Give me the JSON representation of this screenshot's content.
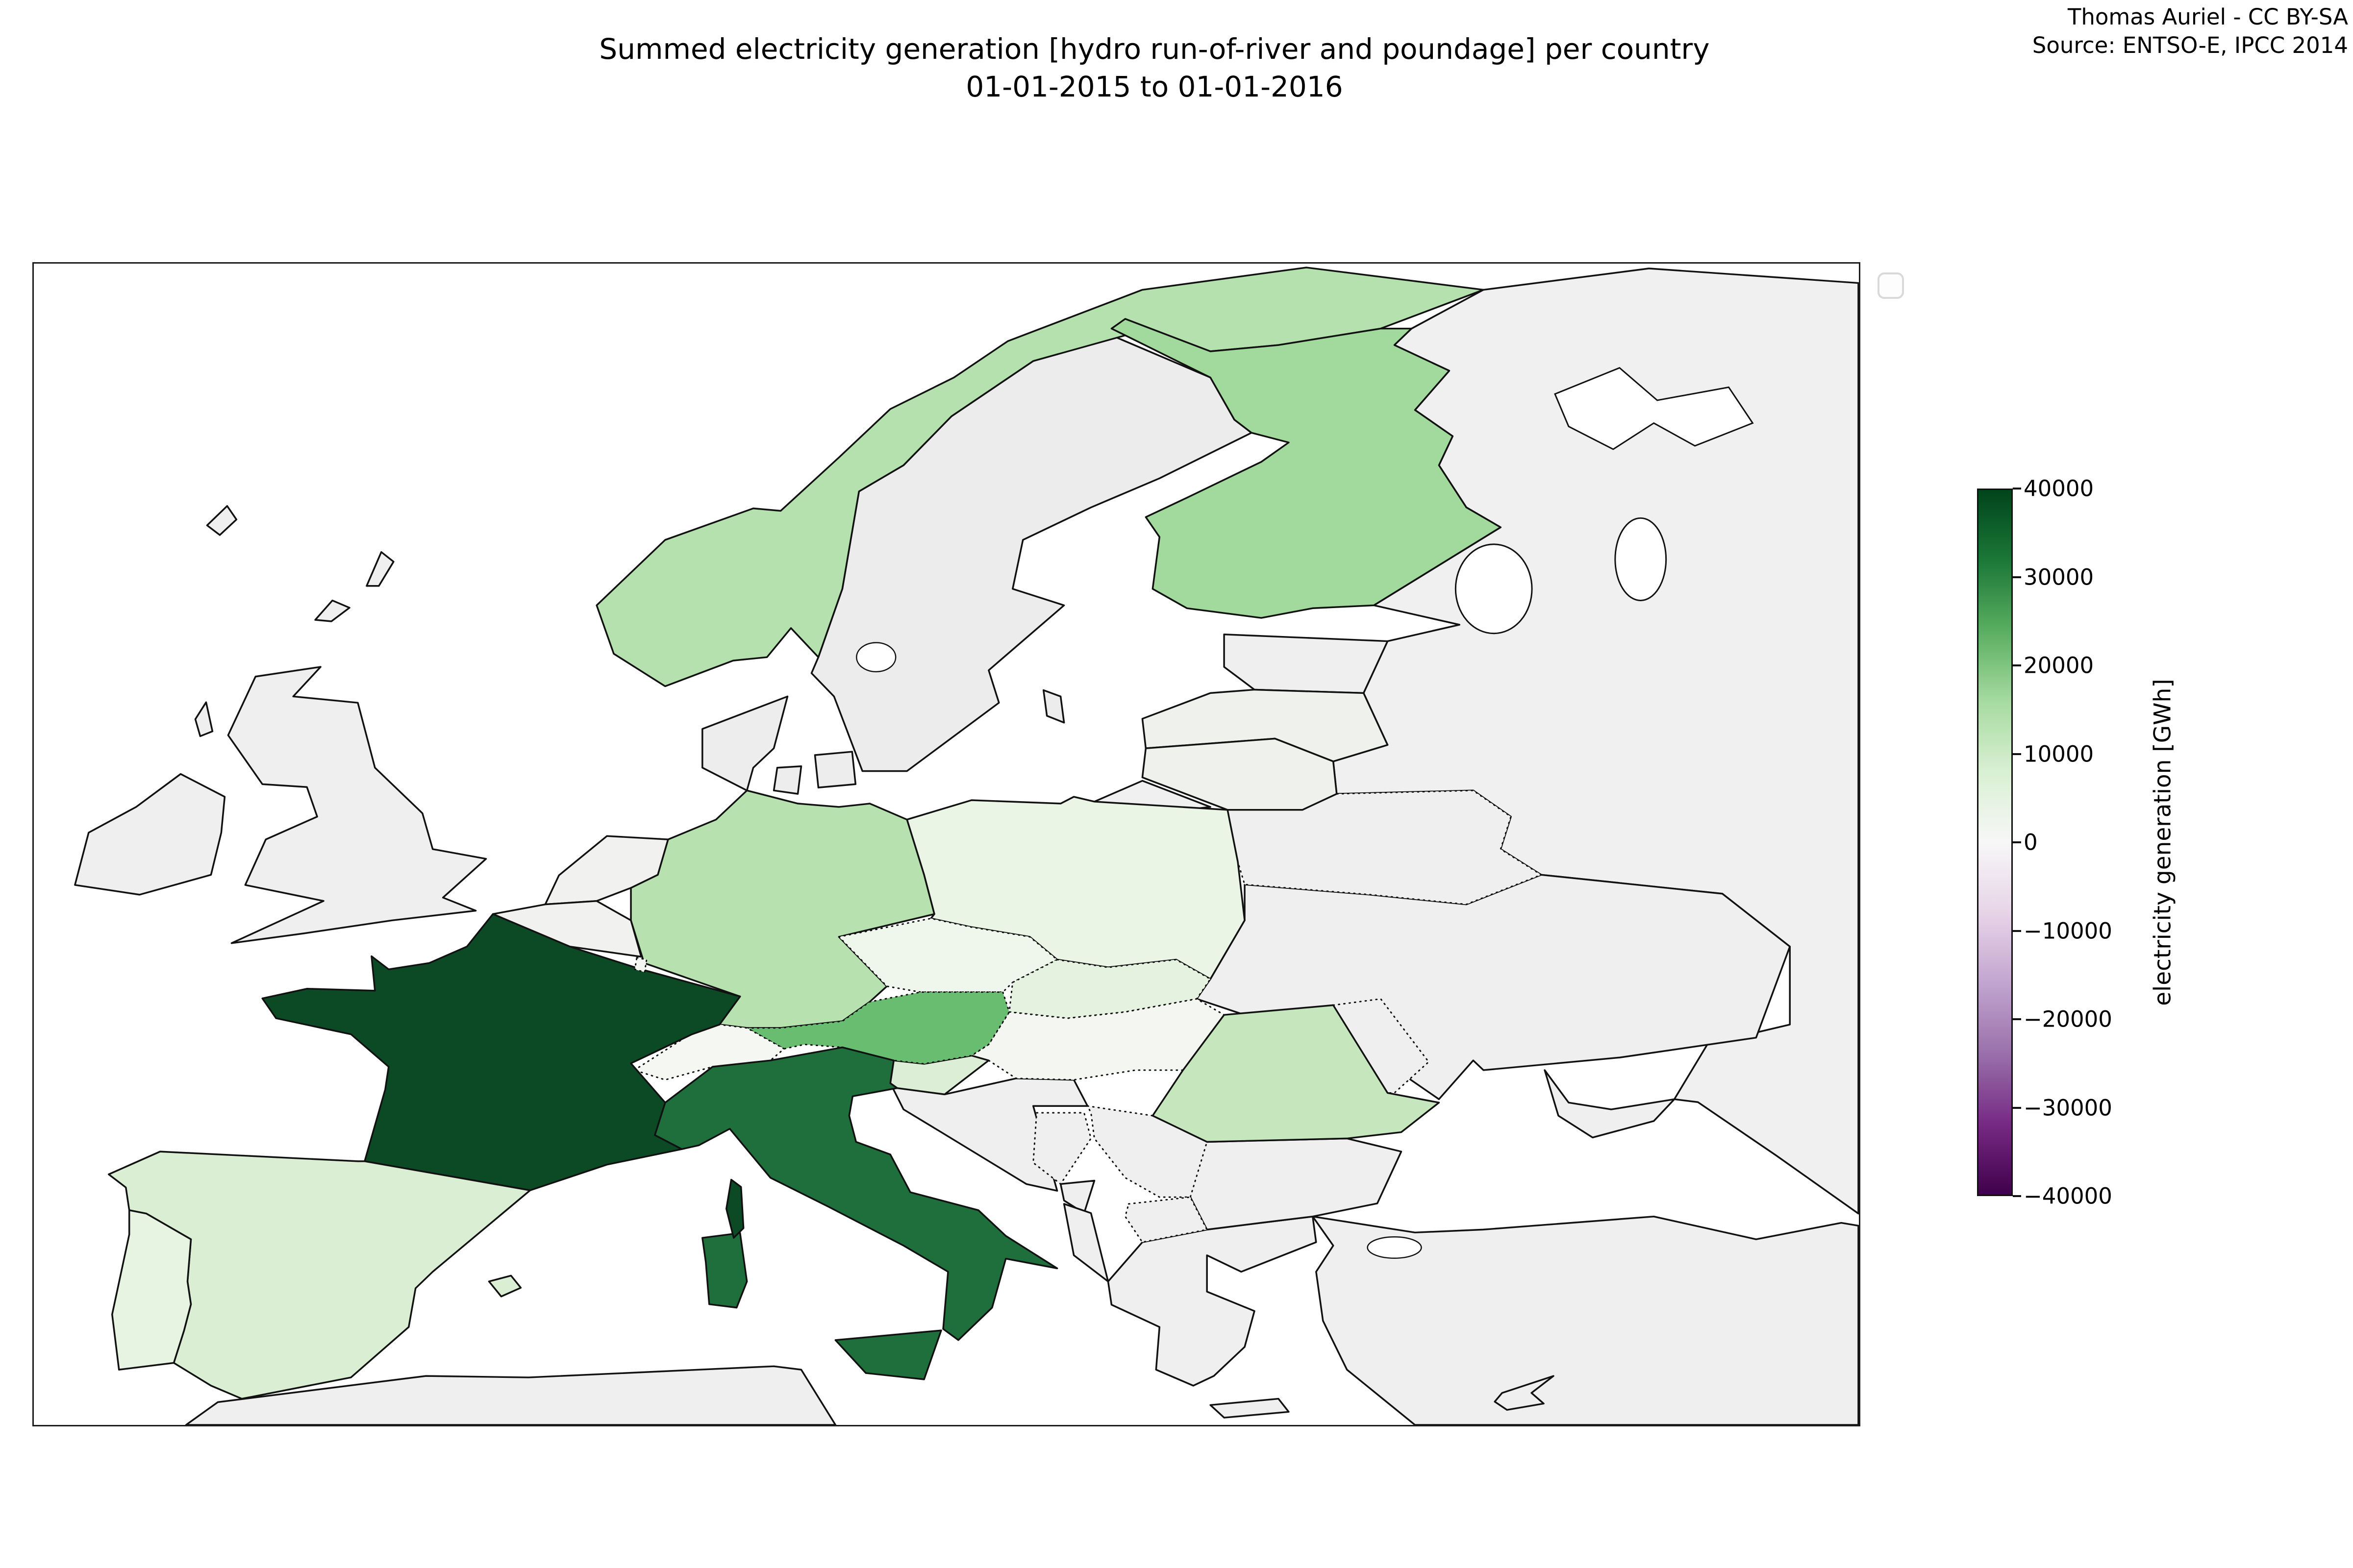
{
  "title": {
    "line1": "Summed electricity generation [hydro run-of-river and poundage] per country",
    "line2": "01-01-2015 to 01-01-2016"
  },
  "credit": {
    "line1": "Thomas Auriel - CC BY-SA",
    "line2": "Source: ENTSO-E, IPCC 2014"
  },
  "colorbar": {
    "label": "electricity generation [GWh]",
    "ticks": [
      "40000",
      "30000",
      "20000",
      "10000",
      "0",
      "−10000",
      "−20000",
      "−30000",
      "−40000"
    ],
    "vmin": -40000,
    "vmax": 40000,
    "colormap_name": "PRGn (green = positive, purple = negative)",
    "gradient_stops_top_to_bottom": [
      "#00441b",
      "#1b7837",
      "#5aae61",
      "#a6dba0",
      "#d9f0d3",
      "#f7f7f7",
      "#e7d4e8",
      "#c2a5cf",
      "#9970ab",
      "#762a83",
      "#40004b"
    ]
  },
  "map": {
    "sea_color": "#ffffff",
    "no_data_color": "#efefef",
    "border_color": "#111111",
    "countries": {
      "france": {
        "label": "France",
        "color": "#0c4a26",
        "border": "solid"
      },
      "italy": {
        "label": "Italy",
        "color": "#1e6f3c",
        "border": "solid"
      },
      "austria": {
        "label": "Austria",
        "color": "#68bd70",
        "border": "dotted"
      },
      "finland": {
        "label": "Finland",
        "color": "#a2d99c",
        "border": "solid"
      },
      "germany": {
        "label": "Germany",
        "color": "#b7e2b0",
        "border": "solid"
      },
      "norway": {
        "label": "Norway",
        "color": "#b5e1ae",
        "border": "solid"
      },
      "romania": {
        "label": "Romania",
        "color": "#c6e6bd",
        "border": "solid"
      },
      "spain": {
        "label": "Spain",
        "color": "#d9eed3",
        "border": "solid"
      },
      "slovenia": {
        "label": "Slovenia",
        "color": "#dcefd6",
        "border": "solid"
      },
      "slovakia": {
        "label": "Slovakia",
        "color": "#e4f2df",
        "border": "dotted"
      },
      "portugal": {
        "label": "Portugal",
        "color": "#e7f4e2",
        "border": "solid"
      },
      "poland": {
        "label": "Poland",
        "color": "#eaf5e6",
        "border": "solid"
      },
      "czechia": {
        "label": "Czech Republic",
        "color": "#eff7ec",
        "border": "dotted"
      },
      "switzerland": {
        "label": "Switzerland",
        "color": "#f5f7f3",
        "border": "dotted"
      },
      "hungary": {
        "label": "Hungary",
        "color": "#f4f6f2",
        "border": "dotted"
      },
      "luxembourg": {
        "label": "Luxembourg",
        "color": "#f4f6f2",
        "border": "dotted"
      },
      "belgium": {
        "label": "Belgium",
        "color": "#f1f1f0",
        "border": "solid",
        "no_data": true
      },
      "netherlands": {
        "label": "Netherlands",
        "color": "#f1f1f0",
        "border": "solid",
        "no_data": true
      },
      "uk": {
        "label": "United Kingdom",
        "color": "#efefef",
        "border": "solid",
        "no_data": true
      },
      "ireland": {
        "label": "Ireland",
        "color": "#efefef",
        "border": "solid",
        "no_data": true
      },
      "sweden": {
        "label": "Sweden",
        "color": "#ececec",
        "border": "solid",
        "no_data": true
      },
      "denmark": {
        "label": "Denmark",
        "color": "#ededed",
        "border": "solid",
        "no_data": true
      },
      "estonia": {
        "label": "Estonia",
        "color": "#efefef",
        "border": "solid",
        "no_data": true
      },
      "latvia": {
        "label": "Latvia",
        "color": "#eef1ec",
        "border": "solid",
        "no_data": true
      },
      "lithuania": {
        "label": "Lithuania",
        "color": "#eef1ec",
        "border": "solid",
        "no_data": true
      },
      "kaliningrad": {
        "label": "Russia (Kaliningrad)",
        "color": "#f0f0f0",
        "border": "solid",
        "no_data": true
      },
      "russia": {
        "label": "Russia",
        "color": "#f0f0f0",
        "border": "solid",
        "no_data": true
      },
      "belarus": {
        "label": "Belarus",
        "color": "#efefef",
        "border": "dotted",
        "no_data": true
      },
      "ukraine": {
        "label": "Ukraine",
        "color": "#efefef",
        "border": "solid",
        "no_data": true
      },
      "moldova": {
        "label": "Moldova",
        "color": "#efefef",
        "border": "dotted",
        "no_data": true
      },
      "croatia": {
        "label": "Croatia",
        "color": "#efefef",
        "border": "solid",
        "no_data": true
      },
      "bosnia": {
        "label": "Bosnia and Herzegovina",
        "color": "#efefef",
        "border": "dotted",
        "no_data": true
      },
      "serbia": {
        "label": "Serbia",
        "color": "#efefef",
        "border": "dotted",
        "no_data": true
      },
      "montenegro": {
        "label": "Montenegro",
        "color": "#efefef",
        "border": "solid",
        "no_data": true
      },
      "albania": {
        "label": "Albania",
        "color": "#efefef",
        "border": "solid",
        "no_data": true
      },
      "macedonia": {
        "label": "North Macedonia",
        "color": "#efefef",
        "border": "dotted",
        "no_data": true
      },
      "greece": {
        "label": "Greece",
        "color": "#efefef",
        "border": "solid",
        "no_data": true
      },
      "bulgaria": {
        "label": "Bulgaria",
        "color": "#efefef",
        "border": "solid",
        "no_data": true
      },
      "turkey": {
        "label": "Turkey",
        "color": "#efefef",
        "border": "solid",
        "no_data": true
      },
      "africa": {
        "label": "Morocco / Algeria / Tunisia",
        "color": "#efefef",
        "border": "solid",
        "no_data": true
      },
      "cyprus": {
        "label": "Cyprus",
        "color": "#efefef",
        "border": "solid",
        "no_data": true
      },
      "crimea": {
        "label": "Crimea",
        "color": "#efefef",
        "border": "solid",
        "no_data": true
      },
      "faroe": {
        "label": "Faroe Islands",
        "color": "#efefef",
        "border": "solid",
        "no_data": true
      },
      "shetland": {
        "label": "Shetland",
        "color": "#efefef",
        "border": "solid",
        "no_data": true
      },
      "orkney": {
        "label": "Orkney",
        "color": "#efefef",
        "border": "solid",
        "no_data": true
      },
      "hebrides": {
        "label": "Outer Hebrides",
        "color": "#efefef",
        "border": "solid",
        "no_data": true
      },
      "gotland": {
        "label": "Gotland",
        "color": "#ececec",
        "border": "solid",
        "no_data": true
      }
    }
  },
  "chart_data": {
    "type": "choropleth",
    "title": "Summed electricity generation [hydro run-of-river and poundage] per country, 01-01-2015 to 01-01-2016",
    "colorbar_label": "electricity generation [GWh]",
    "value_range": [
      -40000,
      40000
    ],
    "legend_position": "right colorbar",
    "series": [
      {
        "country": "France",
        "value_gwh_est": 37500
      },
      {
        "country": "Italy",
        "value_gwh_est": 30000
      },
      {
        "country": "Austria",
        "value_gwh_est": 24000
      },
      {
        "country": "Finland",
        "value_gwh_est": 20000
      },
      {
        "country": "Germany",
        "value_gwh_est": 15500
      },
      {
        "country": "Norway",
        "value_gwh_est": 14500
      },
      {
        "country": "Romania",
        "value_gwh_est": 12000
      },
      {
        "country": "Spain",
        "value_gwh_est": 9000
      },
      {
        "country": "Slovenia",
        "value_gwh_est": 8000
      },
      {
        "country": "Slovakia",
        "value_gwh_est": 5500
      },
      {
        "country": "Portugal",
        "value_gwh_est": 4500
      },
      {
        "country": "Poland",
        "value_gwh_est": 3500
      },
      {
        "country": "Czech Republic",
        "value_gwh_est": 2500
      },
      {
        "country": "Switzerland",
        "value_gwh_est": 1000
      },
      {
        "country": "Hungary",
        "value_gwh_est": 700
      },
      {
        "country": "Luxembourg",
        "value_gwh_est": 400
      }
    ],
    "no_data_countries": [
      "United Kingdom",
      "Ireland",
      "Sweden",
      "Denmark",
      "Netherlands",
      "Belgium",
      "Estonia",
      "Latvia",
      "Lithuania",
      "Russia",
      "Belarus",
      "Ukraine",
      "Moldova",
      "Croatia",
      "Bosnia and Herzegovina",
      "Serbia",
      "Montenegro",
      "Albania",
      "North Macedonia",
      "Greece",
      "Bulgaria",
      "Turkey",
      "Morocco",
      "Algeria",
      "Tunisia",
      "Cyprus"
    ]
  }
}
